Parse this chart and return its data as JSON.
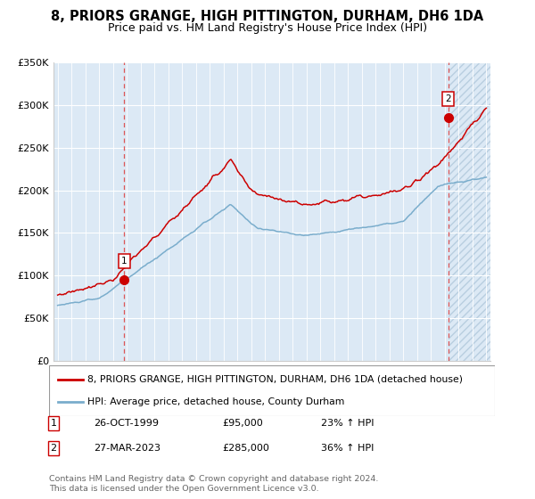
{
  "title": "8, PRIORS GRANGE, HIGH PITTINGTON, DURHAM, DH6 1DA",
  "subtitle": "Price paid vs. HM Land Registry's House Price Index (HPI)",
  "ylim": [
    0,
    350000
  ],
  "yticks": [
    0,
    50000,
    100000,
    150000,
    200000,
    250000,
    300000,
    350000
  ],
  "ytick_labels": [
    "£0",
    "£50K",
    "£100K",
    "£150K",
    "£200K",
    "£250K",
    "£300K",
    "£350K"
  ],
  "x_start_year": 1995,
  "x_end_year": 2026,
  "sale1_date": 1999.82,
  "sale1_price": 95000,
  "sale1_label": "1",
  "sale1_text": "26-OCT-1999",
  "sale1_price_str": "£95,000",
  "sale1_pct": "23% ↑ HPI",
  "sale2_date": 2023.24,
  "sale2_price": 285000,
  "sale2_label": "2",
  "sale2_text": "27-MAR-2023",
  "sale2_price_str": "£285,000",
  "sale2_pct": "36% ↑ HPI",
  "line1_color": "#cc0000",
  "line2_color": "#7aadcc",
  "bg_color": "#dce9f5",
  "grid_color": "#ffffff",
  "legend_line1": "8, PRIORS GRANGE, HIGH PITTINGTON, DURHAM, DH6 1DA (detached house)",
  "legend_line2": "HPI: Average price, detached house, County Durham",
  "footer": "Contains HM Land Registry data © Crown copyright and database right 2024.\nThis data is licensed under the Open Government Licence v3.0.",
  "title_fontsize": 10.5,
  "subtitle_fontsize": 9
}
